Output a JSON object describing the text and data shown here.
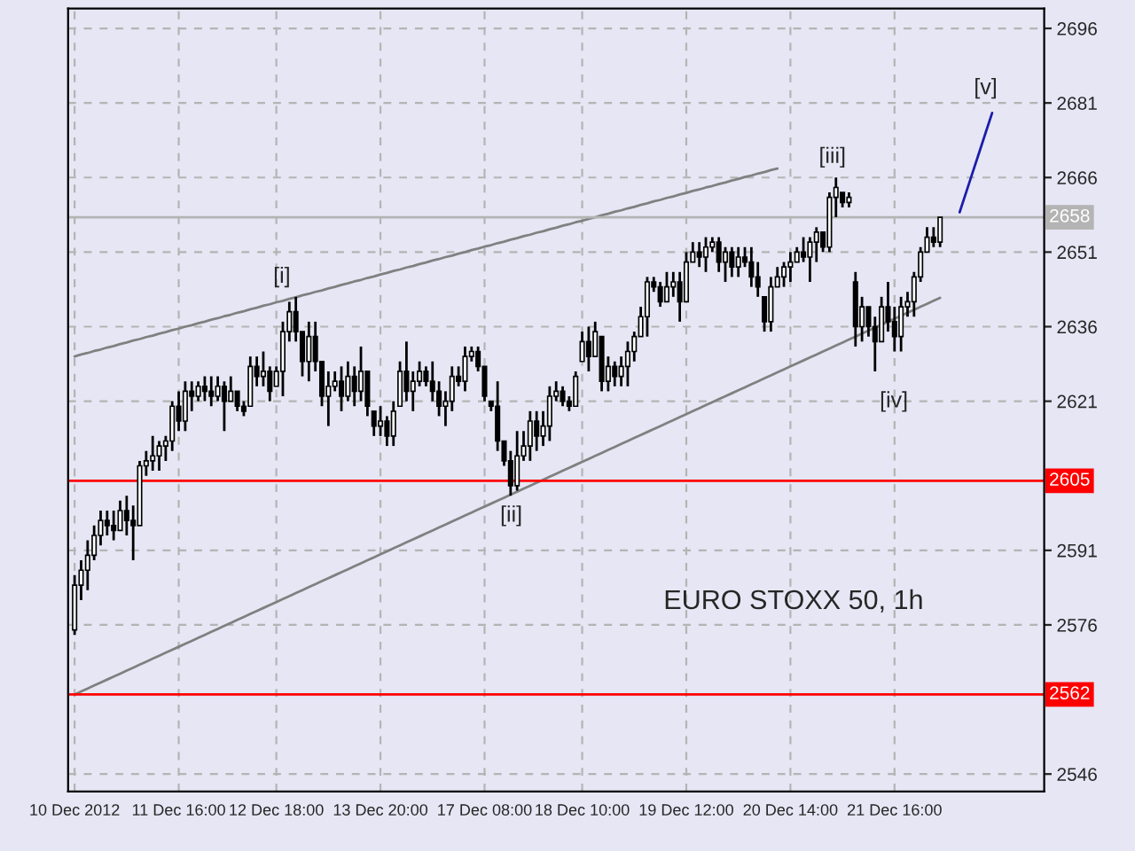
{
  "chart_data": {
    "type": "candlestick",
    "categories": [
      "10 Dec 2012",
      null,
      null,
      null,
      null,
      null,
      null,
      null,
      null,
      null,
      null,
      null,
      null,
      null,
      null,
      null,
      "11 Dec 16:00",
      null,
      null,
      null,
      null,
      null,
      null,
      null,
      null,
      null,
      null,
      null,
      null,
      null,
      null,
      "12 Dec 18:00",
      null,
      null,
      null,
      null,
      null,
      null,
      null,
      null,
      null,
      null,
      null,
      null,
      null,
      null,
      null,
      "13 Dec 20:00",
      null,
      null,
      null,
      null,
      null,
      null,
      null,
      null,
      null,
      null,
      null,
      null,
      null,
      null,
      null,
      "17 Dec 08:00",
      null,
      null,
      null,
      null,
      null,
      null,
      null,
      null,
      null,
      null,
      null,
      null,
      null,
      null,
      "18 Dec 10:00",
      null,
      null,
      null,
      null,
      null,
      null,
      null,
      null,
      null,
      null,
      null,
      null,
      null,
      null,
      null,
      "19 Dec 12:00",
      null,
      null,
      null,
      null,
      null,
      null,
      null,
      null,
      null,
      null,
      null,
      null,
      null,
      null,
      null,
      "20 Dec 14:00",
      null,
      null,
      null,
      null,
      null,
      null,
      null,
      null,
      null,
      null,
      null,
      null,
      null,
      null,
      null,
      "21 Dec 16:00",
      null,
      null,
      null,
      null,
      null,
      null,
      null,
      null,
      null,
      null,
      null,
      null,
      null,
      null,
      null
    ],
    "ohlc": [
      [
        2575,
        2586,
        2574,
        2584
      ],
      [
        2584,
        2589,
        2581,
        2587
      ],
      [
        2587,
        2593,
        2583,
        2590
      ],
      [
        2590,
        2596,
        2589,
        2594
      ],
      [
        2594,
        2599,
        2592,
        2597
      ],
      [
        2597,
        2599,
        2594,
        2596
      ],
      [
        2596,
        2599,
        2593,
        2595
      ],
      [
        2595,
        2601,
        2595,
        2599
      ],
      [
        2599,
        2602,
        2594,
        2597
      ],
      [
        2597,
        2600,
        2589,
        2596
      ],
      [
        2596,
        2609,
        2596,
        2608
      ],
      [
        2608,
        2611,
        2606,
        2609
      ],
      [
        2609,
        2614,
        2607,
        2610
      ],
      [
        2610,
        2613,
        2607,
        2612
      ],
      [
        2612,
        2614,
        2609,
        2613
      ],
      [
        2613,
        2621,
        2611,
        2620
      ],
      [
        2620,
        2623,
        2615,
        2617
      ],
      [
        2617,
        2625,
        2615,
        2623
      ],
      [
        2623,
        2625,
        2619,
        2622
      ],
      [
        2622,
        2625,
        2621,
        2624
      ],
      [
        2624,
        2626,
        2621,
        2623
      ],
      [
        2623,
        2626,
        2620,
        2622
      ],
      [
        2622,
        2626,
        2621,
        2624
      ],
      [
        2624,
        2625,
        2615,
        2621
      ],
      [
        2621,
        2626,
        2621,
        2623
      ],
      [
        2623,
        2623,
        2619,
        2620
      ],
      [
        2620,
        2621,
        2618,
        2619
      ],
      [
        2620,
        2630,
        2620,
        2628
      ],
      [
        2628,
        2630,
        2624,
        2626
      ],
      [
        2626,
        2631,
        2624,
        2627
      ],
      [
        2627,
        2628,
        2621,
        2623
      ],
      [
        2624,
        2628,
        2624,
        2627
      ],
      [
        2627,
        2637,
        2622,
        2635
      ],
      [
        2635,
        2641,
        2633,
        2639
      ],
      [
        2639,
        2642,
        2633,
        2635
      ],
      [
        2635,
        2635,
        2626,
        2629
      ],
      [
        2629,
        2637,
        2625,
        2634
      ],
      [
        2634,
        2637,
        2627,
        2629
      ],
      [
        2629,
        2629,
        2620,
        2622
      ],
      [
        2622,
        2627,
        2616,
        2624
      ],
      [
        2624,
        2627,
        2623,
        2625
      ],
      [
        2625,
        2628,
        2619,
        2622
      ],
      [
        2622,
        2629,
        2621,
        2626
      ],
      [
        2626,
        2628,
        2620,
        2623
      ],
      [
        2623,
        2632,
        2621,
        2627
      ],
      [
        2627,
        2627,
        2618,
        2620
      ],
      [
        2619,
        2619,
        2614,
        2616
      ],
      [
        2616,
        2620,
        2614,
        2617
      ],
      [
        2617,
        2618,
        2612,
        2614
      ],
      [
        2614,
        2621,
        2612,
        2619
      ],
      [
        2620,
        2629,
        2620,
        2627
      ],
      [
        2627,
        2633,
        2621,
        2623
      ],
      [
        2623,
        2627,
        2619,
        2625
      ],
      [
        2625,
        2629,
        2624,
        2627
      ],
      [
        2627,
        2628,
        2624,
        2625
      ],
      [
        2625,
        2629,
        2621,
        2623
      ],
      [
        2623,
        2625,
        2618,
        2620
      ],
      [
        2620,
        2623,
        2616,
        2621
      ],
      [
        2621,
        2628,
        2619,
        2626
      ],
      [
        2626,
        2628,
        2624,
        2625
      ],
      [
        2625,
        2632,
        2623,
        2630
      ],
      [
        2630,
        2632,
        2629,
        2631
      ],
      [
        2631,
        2632,
        2627,
        2628
      ],
      [
        2628,
        2628,
        2621,
        2622
      ],
      [
        2621,
        2621,
        2619,
        2620
      ],
      [
        2620,
        2625,
        2611,
        2613
      ],
      [
        2613,
        2613,
        2608,
        2609
      ],
      [
        2609,
        2611,
        2602,
        2604
      ],
      [
        2604,
        2615,
        2603,
        2610
      ],
      [
        2610,
        2615,
        2609,
        2612
      ],
      [
        2612,
        2619,
        2609,
        2617
      ],
      [
        2617,
        2619,
        2611,
        2614
      ],
      [
        2614,
        2619,
        2612,
        2616
      ],
      [
        2616,
        2624,
        2613,
        2622
      ],
      [
        2622,
        2625,
        2621,
        2623
      ],
      [
        2623,
        2624,
        2620,
        2621
      ],
      [
        2621,
        2622,
        2619,
        2620
      ],
      [
        2620,
        2627,
        2620,
        2626
      ],
      [
        2629,
        2635,
        2629,
        2633
      ],
      [
        2633,
        2636,
        2627,
        2630
      ],
      [
        2630,
        2637,
        2630,
        2635
      ],
      [
        2634,
        2634,
        2623,
        2625
      ],
      [
        2625,
        2630,
        2623,
        2628
      ],
      [
        2628,
        2629,
        2624,
        2626
      ],
      [
        2626,
        2630,
        2624,
        2628
      ],
      [
        2628,
        2633,
        2624,
        2631
      ],
      [
        2631,
        2635,
        2629,
        2634
      ],
      [
        2634,
        2640,
        2634,
        2638
      ],
      [
        2638,
        2646,
        2634,
        2645
      ],
      [
        2645,
        2646,
        2643,
        2644
      ],
      [
        2644,
        2645,
        2640,
        2641
      ],
      [
        2641,
        2647,
        2641,
        2644
      ],
      [
        2644,
        2647,
        2642,
        2645
      ],
      [
        2645,
        2647,
        2637,
        2641
      ],
      [
        2641,
        2651,
        2641,
        2649
      ],
      [
        2649,
        2653,
        2649,
        2651
      ],
      [
        2651,
        2653,
        2648,
        2650
      ],
      [
        2650,
        2654,
        2647,
        2652
      ],
      [
        2652,
        2654,
        2651,
        2653
      ],
      [
        2653,
        2654,
        2647,
        2649
      ],
      [
        2649,
        2652,
        2645,
        2651
      ],
      [
        2651,
        2652,
        2646,
        2648
      ],
      [
        2648,
        2652,
        2646,
        2650
      ],
      [
        2650,
        2652,
        2648,
        2649
      ],
      [
        2649,
        2652,
        2644,
        2646
      ],
      [
        2646,
        2649,
        2642,
        2644
      ],
      [
        2642,
        2642,
        2635,
        2637
      ],
      [
        2637,
        2646,
        2635,
        2644
      ],
      [
        2644,
        2648,
        2644,
        2646
      ],
      [
        2646,
        2649,
        2644,
        2648
      ],
      [
        2648,
        2651,
        2645,
        2649
      ],
      [
        2649,
        2652,
        2649,
        2651
      ],
      [
        2651,
        2654,
        2649,
        2650
      ],
      [
        2650,
        2654,
        2645,
        2653
      ],
      [
        2653,
        2656,
        2649,
        2655
      ],
      [
        2655,
        2655,
        2651,
        2652
      ],
      [
        2652,
        2663,
        2651,
        2662
      ],
      [
        2662,
        2666,
        2658,
        2664
      ],
      [
        2663,
        2663,
        2660,
        2661
      ],
      [
        2661,
        2663,
        2660,
        2662
      ],
      [
        2645,
        2647,
        2632,
        2636
      ],
      [
        2636,
        2642,
        2633,
        2640
      ],
      [
        2640,
        2640,
        2634,
        2636
      ],
      [
        2636,
        2638,
        2627,
        2633
      ],
      [
        2633,
        2642,
        2633,
        2640
      ],
      [
        2640,
        2645,
        2635,
        2637
      ],
      [
        2637,
        2640,
        2631,
        2634
      ],
      [
        2634,
        2642,
        2631,
        2640
      ],
      [
        2640,
        2643,
        2638,
        2641
      ],
      [
        2641,
        2647,
        2638,
        2646
      ],
      [
        2646,
        2652,
        2645,
        2651
      ],
      [
        2651,
        2656,
        2651,
        2654
      ],
      [
        2654,
        2656,
        2652,
        2653
      ],
      [
        2653,
        2658,
        2652,
        2658
      ],
      null,
      null,
      null,
      null,
      null,
      null,
      null,
      null
    ],
    "color": "#000000",
    "series": [
      {
        "type": "line",
        "color": "#808080",
        "values": [
          2630.0,
          2630.4,
          2630.7,
          2631.1,
          2631.4,
          2631.8,
          2632.1,
          2632.5,
          2632.8,
          2633.2,
          2633.5,
          2633.9,
          2634.2,
          2634.6,
          2634.9,
          2635.3,
          2635.6,
          2636.0,
          2636.3,
          2636.7,
          2637.0,
          2637.4,
          2637.7,
          2638.1,
          2638.4,
          2638.8,
          2639.1,
          2639.5,
          2639.8,
          2640.2,
          2640.5,
          2640.9,
          2641.2,
          2641.6,
          2641.9,
          2642.3,
          2642.6,
          2643.0,
          2643.3,
          2643.7,
          2644.0,
          2644.4,
          2644.7,
          2645.1,
          2645.4,
          2645.8,
          2646.1,
          2646.5,
          2646.8,
          2647.2,
          2647.5,
          2647.9,
          2648.2,
          2648.6,
          2648.9,
          2649.3,
          2649.6,
          2650.0,
          2650.3,
          2650.7,
          2651.0,
          2651.4,
          2651.7,
          2652.1,
          2652.4,
          2652.8,
          2653.1,
          2653.5,
          2653.8,
          2654.2,
          2654.5,
          2654.9,
          2655.2,
          2655.6,
          2655.9,
          2656.3,
          2656.6,
          2657.0,
          2657.3,
          2657.7,
          2658.0,
          2658.4,
          2658.7,
          2659.1,
          2659.4,
          2659.8,
          2660.1,
          2660.5,
          2660.8,
          2661.2,
          2661.5,
          2661.9,
          2662.2,
          2662.6,
          2662.9,
          2663.3,
          2663.6,
          2664.0,
          2664.3,
          2664.7,
          2665.0,
          2665.4,
          2665.7,
          2666.1,
          2666.4,
          2666.8,
          2667.1,
          2667.5,
          2667.8,
          null,
          null,
          null,
          null,
          null,
          null,
          null,
          null,
          null,
          null,
          null,
          null,
          null,
          null,
          null,
          null,
          null,
          null,
          null,
          null,
          null,
          null,
          null,
          null,
          null,
          null,
          null,
          null,
          null,
          null,
          null,
          null,
          null
        ]
      },
      {
        "type": "line",
        "color": "#808080",
        "values": [
          2562.0,
          2562.6,
          2563.2,
          2563.8,
          2564.4,
          2565.0,
          2565.6,
          2566.2,
          2566.8,
          2567.4,
          2568.0,
          2568.6,
          2569.2,
          2569.8,
          2570.4,
          2571.0,
          2571.6,
          2572.2,
          2572.8,
          2573.4,
          2574.0,
          2574.6,
          2575.2,
          2575.8,
          2576.4,
          2577.0,
          2577.6,
          2578.2,
          2578.8,
          2579.4,
          2580.0,
          2580.6,
          2581.2,
          2581.8,
          2582.4,
          2583.0,
          2583.6,
          2584.2,
          2584.8,
          2585.4,
          2586.0,
          2586.6,
          2587.2,
          2587.8,
          2588.4,
          2589.0,
          2589.6,
          2590.2,
          2590.8,
          2591.4,
          2592.0,
          2592.6,
          2593.2,
          2593.8,
          2594.4,
          2595.0,
          2595.6,
          2596.2,
          2596.8,
          2597.4,
          2598.0,
          2598.6,
          2599.2,
          2599.8,
          2600.4,
          2601.0,
          2601.6,
          2602.2,
          2602.8,
          2603.4,
          2604.0,
          2604.6,
          2605.2,
          2605.8,
          2606.4,
          2607.0,
          2607.6,
          2608.2,
          2608.8,
          2609.4,
          2610.0,
          2610.6,
          2611.2,
          2611.8,
          2612.4,
          2613.0,
          2613.6,
          2614.2,
          2614.8,
          2615.4,
          2616.0,
          2616.6,
          2617.2,
          2617.8,
          2618.4,
          2619.0,
          2619.6,
          2620.2,
          2620.8,
          2621.4,
          2622.0,
          2622.6,
          2623.2,
          2623.8,
          2624.4,
          2625.0,
          2625.6,
          2626.2,
          2626.8,
          2627.4,
          2628.0,
          2628.6,
          2629.2,
          2629.8,
          2630.4,
          2631.0,
          2631.6,
          2632.2,
          2632.8,
          2633.4,
          2634.0,
          2634.6,
          2635.2,
          2635.8,
          2636.4,
          2637.0,
          2637.6,
          2638.2,
          2638.8,
          2639.4,
          2640.0,
          2640.6,
          2641.2,
          2641.8,
          null,
          null,
          null,
          null,
          null,
          null,
          null,
          null
        ]
      },
      {
        "type": "line",
        "color": "#1c1caa",
        "values": [
          null,
          null,
          null,
          null,
          null,
          null,
          null,
          null,
          null,
          null,
          null,
          null,
          null,
          null,
          null,
          null,
          null,
          null,
          null,
          null,
          null,
          null,
          null,
          null,
          null,
          null,
          null,
          null,
          null,
          null,
          null,
          null,
          null,
          null,
          null,
          null,
          null,
          null,
          null,
          null,
          null,
          null,
          null,
          null,
          null,
          null,
          null,
          null,
          null,
          null,
          null,
          null,
          null,
          null,
          null,
          null,
          null,
          null,
          null,
          null,
          null,
          null,
          null,
          null,
          null,
          null,
          null,
          null,
          null,
          null,
          null,
          null,
          null,
          null,
          null,
          null,
          null,
          null,
          null,
          null,
          null,
          null,
          null,
          null,
          null,
          null,
          null,
          null,
          null,
          null,
          null,
          null,
          null,
          null,
          null,
          null,
          null,
          null,
          null,
          null,
          null,
          null,
          null,
          null,
          null,
          null,
          null,
          null,
          null,
          null,
          null,
          null,
          null,
          null,
          null,
          null,
          null,
          null,
          null,
          null,
          null,
          null,
          null,
          null,
          null,
          null,
          null,
          null,
          null,
          null,
          null,
          null,
          null,
          null,
          null,
          null,
          2659,
          2663,
          2667,
          2671,
          2675,
          2679
        ]
      }
    ],
    "annotations": [
      "[i]",
      "[ii]",
      "[iii]",
      "[iv]",
      "[v]",
      "EURO STOXX 50, 1h"
    ],
    "ref_lines": [
      {
        "axis": "y",
        "value": 2658,
        "label": "2658",
        "color": "#b4b4b4"
      },
      {
        "axis": "y",
        "value": 2605,
        "label": "2605",
        "color": "#ff0000"
      },
      {
        "axis": "y",
        "value": 2562,
        "label": "2562",
        "color": "#ff0000"
      }
    ],
    "ylim": [
      2542.5,
      2700
    ],
    "yticks": [
      2546,
      2576,
      2591,
      2621,
      2636,
      2651,
      2666,
      2681,
      2696
    ],
    "grid": true
  }
}
